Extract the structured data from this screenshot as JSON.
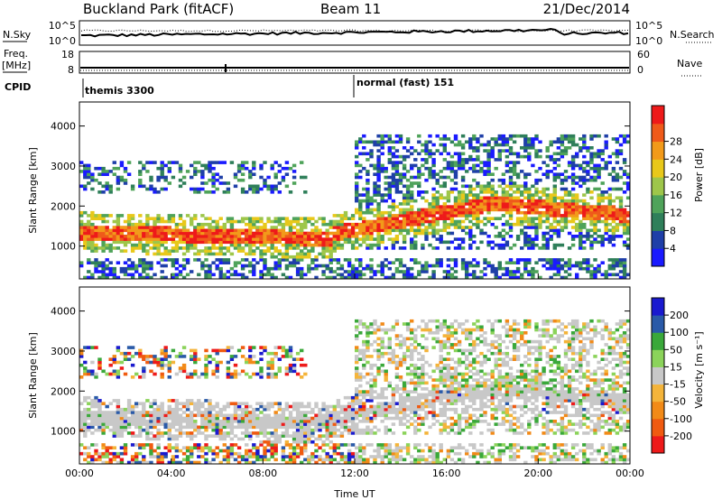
{
  "header": {
    "site": "Buckland Park (fitACF)",
    "beam": "Beam 11",
    "date": "21/Dec/2014"
  },
  "left_labels": {
    "nsky": "N.Sky",
    "freq_line1": "Freq.",
    "freq_line2": "[MHz]",
    "cpid": "CPID"
  },
  "right_labels": {
    "nsearch": "N.Search",
    "nave": "Nave"
  },
  "noise_panel": {
    "left_ticks": [
      "10^5",
      "10^0"
    ],
    "right_ticks": [
      "10^5",
      "10^0"
    ]
  },
  "freq_panel": {
    "left_ticks": [
      "18",
      "8"
    ],
    "right_ticks": [
      "60",
      "0"
    ]
  },
  "cpid_panel": {
    "modes": [
      {
        "label": "themis 3300",
        "start_hour": 0
      },
      {
        "label": "normal (fast) 151",
        "start_hour": 12
      }
    ]
  },
  "colors": {
    "power": [
      "#1a1aff",
      "#1f3fa8",
      "#2f7f5a",
      "#4fa35a",
      "#9ec64a",
      "#e8c81a",
      "#f29a1a",
      "#ef5a1a",
      "#ee1a1a"
    ],
    "velocity": [
      "#ee1a1a",
      "#f05a10",
      "#f28a18",
      "#f4b43a",
      "#c8c8c8",
      "#8bd35a",
      "#3aa83a",
      "#2a5aa8",
      "#1a1acf"
    ]
  },
  "chart_data": [
    {
      "type": "heatmap",
      "name": "power",
      "xlabel": "",
      "ylabel": "Slant Range [km]",
      "xlim_hours": [
        0,
        24
      ],
      "ylim": [
        180,
        4600
      ],
      "x_ticks": [
        "00:00",
        "04:00",
        "08:00",
        "12:00",
        "16:00",
        "20:00",
        "00:00"
      ],
      "y_ticks": [
        1000,
        2000,
        3000,
        4000
      ],
      "colorbar": {
        "label": "Power [dB]",
        "range": [
          0,
          32
        ],
        "ticks": [
          4,
          8,
          12,
          16,
          20,
          24,
          28
        ]
      }
    },
    {
      "type": "heatmap",
      "name": "velocity",
      "xlabel": "Time UT",
      "ylabel": "Slant Range [km]",
      "xlim_hours": [
        0,
        24
      ],
      "ylim": [
        180,
        4600
      ],
      "x_ticks": [
        "00:00",
        "04:00",
        "08:00",
        "12:00",
        "16:00",
        "20:00",
        "00:00"
      ],
      "y_ticks": [
        1000,
        2000,
        3000,
        4000
      ],
      "colorbar": {
        "label": "Velocity [m s⁻¹]",
        "ticks": [
          200,
          100,
          50,
          15,
          -15,
          -50,
          -100,
          -200
        ]
      }
    }
  ]
}
